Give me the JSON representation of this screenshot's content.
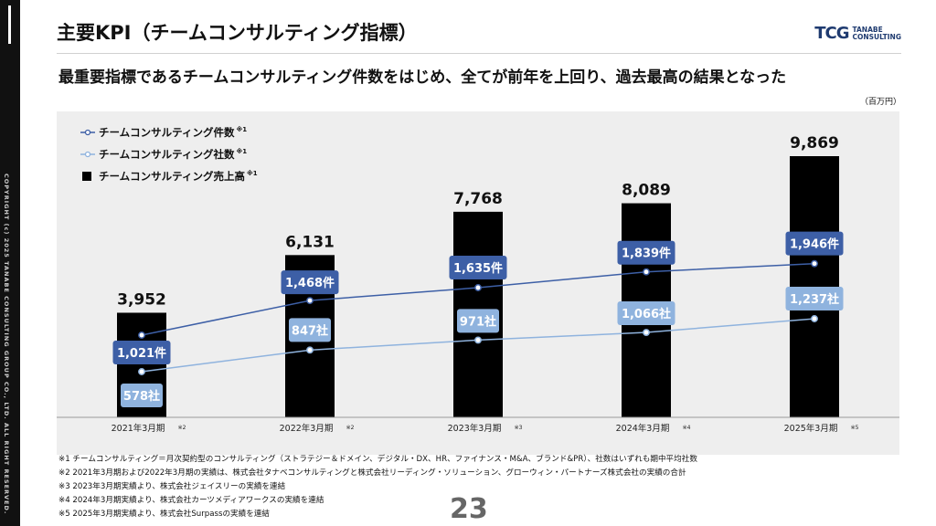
{
  "header": {
    "title": "主要KPI（チームコンサルティング指標）",
    "logo_mark": "TCG",
    "logo_line1": "TANABE",
    "logo_line2": "CONSULTING"
  },
  "subtitle": "最重要指標であるチームコンサルティング件数をはじめ、全てが前年を上回り、過去最高の結果となった",
  "unit": "（百万円）",
  "sidebar": {
    "copyright": "COPYRIGHT (c) 2025 TANABE CONSULTING GROUP CO., LTD. ALL RIGHT RESERVED."
  },
  "chart_data": {
    "type": "bar",
    "categories": [
      "2021年3月期",
      "2022年3月期",
      "2023年3月期",
      "2024年3月期",
      "2025年3月期"
    ],
    "category_notes": [
      "※2",
      "※2",
      "※3",
      "※4",
      "※5"
    ],
    "series": [
      {
        "name": "チームコンサルティング売上高",
        "note": "※1",
        "kind": "bar",
        "color": "#000000",
        "values": [
          3952,
          6131,
          7768,
          8089,
          9869
        ],
        "labels": [
          "3,952",
          "6,131",
          "7,768",
          "8,089",
          "9,869"
        ]
      },
      {
        "name": "チームコンサルティング件数",
        "note": "※1",
        "kind": "line",
        "color": "#3d5fa6",
        "values": [
          1021,
          1468,
          1635,
          1839,
          1946
        ],
        "labels": [
          "1,021件",
          "1,468件",
          "1,635件",
          "1,839件",
          "1,946件"
        ]
      },
      {
        "name": "チームコンサルティング社数",
        "note": "※1",
        "kind": "line",
        "color": "#8fb3de",
        "values": [
          578,
          847,
          971,
          1066,
          1237
        ],
        "labels": [
          "578社",
          "847社",
          "971社",
          "1,066社",
          "1,237社"
        ]
      }
    ],
    "legend_position": "top-left",
    "grid": false
  },
  "footnotes": [
    "※1 チームコンサルティング＝月次契約型のコンサルティング（ストラテジー＆ドメイン、デジタル・DX、HR、ファイナンス・M&A、ブランド&PR）、社数はいずれも期中平均社数",
    "※2 2021年3月期および2022年3月期の実績は、株式会社タナベコンサルティングと株式会社リーディング・ソリューション、グローウィン・パートナーズ株式会社の実績の合計",
    "※3 2023年3月期実績より、株式会社ジェイスリーの実績を連結",
    "※4 2024年3月期実績より、株式会社カーツメディアワークスの実績を連結",
    "※5 2025年3月期実績より、株式会社Surpassの実績を連結"
  ],
  "page_number": "23"
}
